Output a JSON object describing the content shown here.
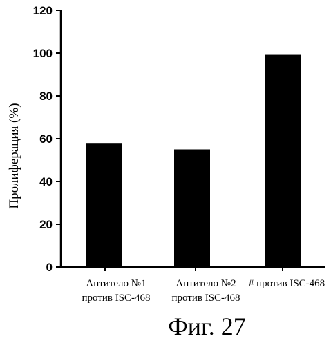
{
  "chart_data": {
    "type": "bar",
    "ylabel": "Пролиферация (%)",
    "ylim": [
      0,
      120
    ],
    "yticks": [
      0,
      20,
      40,
      60,
      80,
      100,
      120
    ],
    "categories": [
      {
        "line1": "Антитело №1",
        "line2": "против ISC-468"
      },
      {
        "line1": "Антитело №2",
        "line2": "против ISC-468"
      },
      {
        "line1": "# против ISC-468",
        "line2": ""
      }
    ],
    "values": [
      58,
      55,
      99.5
    ],
    "bar_color": "#000000",
    "grid": false,
    "legend": "none"
  },
  "caption": "Фиг. 27"
}
